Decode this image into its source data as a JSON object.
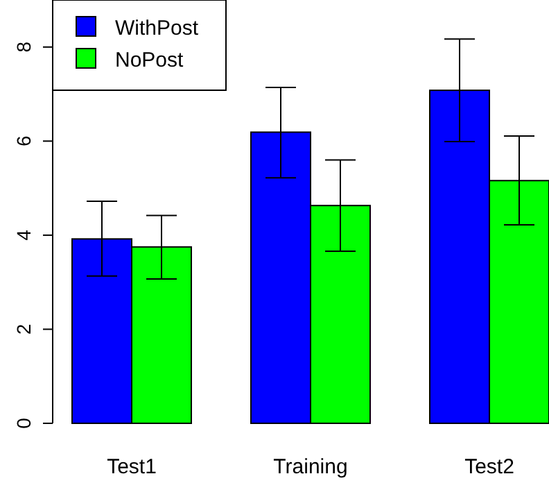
{
  "chart_data": {
    "type": "bar",
    "categories": [
      "Test1",
      "Training",
      "Test2"
    ],
    "series": [
      {
        "name": "WithPost",
        "color": "#0000ff",
        "values": [
          3.92,
          6.19,
          7.08
        ],
        "errors": [
          [
            3.13,
            4.72
          ],
          [
            5.22,
            7.14
          ],
          [
            5.99,
            8.17
          ]
        ]
      },
      {
        "name": "NoPost",
        "color": "#00ff00",
        "values": [
          3.75,
          4.63,
          5.16
        ],
        "errors": [
          [
            3.07,
            4.42
          ],
          [
            3.66,
            5.6
          ],
          [
            4.22,
            6.11
          ]
        ]
      }
    ],
    "ylim": [
      0,
      9
    ],
    "yticks": [
      0,
      2,
      4,
      6,
      8
    ],
    "legend": "top left",
    "grid": false
  }
}
